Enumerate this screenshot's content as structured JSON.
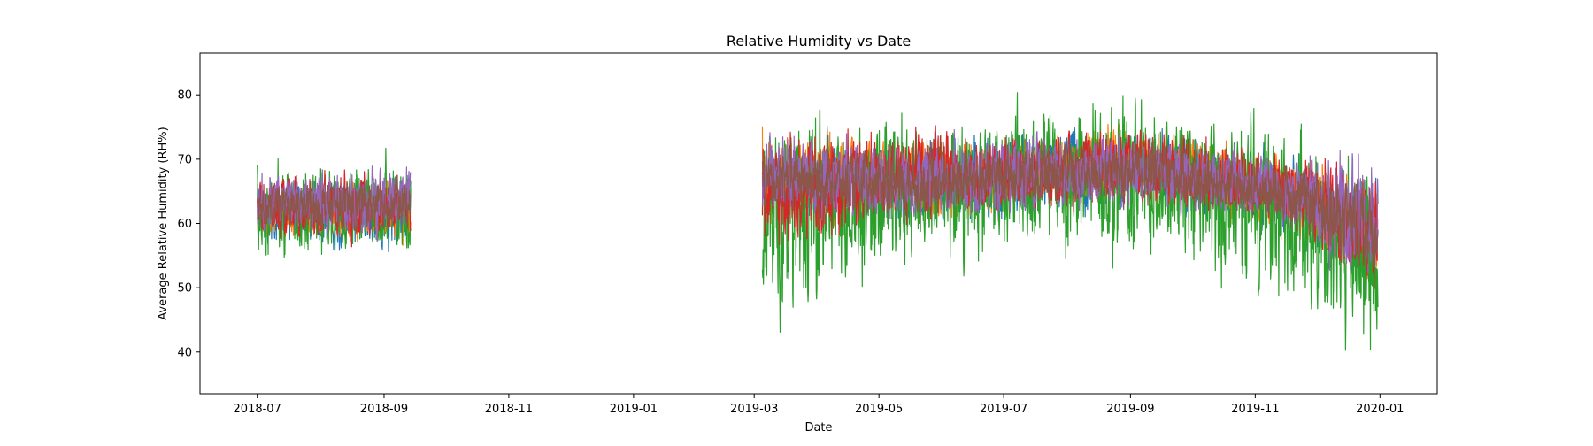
{
  "chart_data": {
    "type": "line",
    "title": "Relative Humidity vs Date",
    "xlabel": "Date",
    "ylabel": "Average Relative Humidity (RH%)",
    "xlim": [
      "2018-06-03",
      "2020-01-29"
    ],
    "ylim": [
      33.5,
      86.5
    ],
    "x_ticks": [
      "2018-07",
      "2018-09",
      "2018-11",
      "2019-01",
      "2019-03",
      "2019-05",
      "2019-07",
      "2019-09",
      "2019-11",
      "2020-01"
    ],
    "y_ticks": [
      40,
      50,
      60,
      70,
      80
    ],
    "grid": false,
    "legend": "none",
    "segments": [
      {
        "start": "2018-07-01",
        "end": "2018-09-14"
      },
      {
        "start": "2019-03-05",
        "end": "2019-12-31"
      }
    ],
    "series": [
      {
        "color": "#1f77b4",
        "range": [
          {
            "x": "2018-07",
            "low": 54,
            "high": 69
          },
          {
            "x": "2018-09",
            "low": 53,
            "high": 70
          },
          {
            "x": "2019-03",
            "low": 58,
            "high": 76
          },
          {
            "x": "2019-05",
            "low": 56,
            "high": 76
          },
          {
            "x": "2019-07",
            "low": 58,
            "high": 78
          },
          {
            "x": "2019-09",
            "low": 59,
            "high": 78
          },
          {
            "x": "2019-11",
            "low": 55,
            "high": 73
          },
          {
            "x": "2019-12",
            "low": 48,
            "high": 72
          }
        ]
      },
      {
        "color": "#ff7f0e",
        "range": [
          {
            "x": "2018-07",
            "low": 55,
            "high": 69
          },
          {
            "x": "2018-09",
            "low": 55,
            "high": 70
          },
          {
            "x": "2019-03",
            "low": 58,
            "high": 77
          },
          {
            "x": "2019-05",
            "low": 57,
            "high": 76
          },
          {
            "x": "2019-07",
            "low": 59,
            "high": 77
          },
          {
            "x": "2019-09",
            "low": 60,
            "high": 78
          },
          {
            "x": "2019-11",
            "low": 56,
            "high": 73
          },
          {
            "x": "2019-12",
            "low": 47,
            "high": 72
          }
        ]
      },
      {
        "color": "#2ca02c",
        "range": [
          {
            "x": "2018-07",
            "low": 51,
            "high": 73
          },
          {
            "x": "2018-09",
            "low": 52,
            "high": 74
          },
          {
            "x": "2019-03",
            "low": 39,
            "high": 84
          },
          {
            "x": "2019-05",
            "low": 49,
            "high": 83
          },
          {
            "x": "2019-07",
            "low": 50,
            "high": 84
          },
          {
            "x": "2019-09",
            "low": 50,
            "high": 83
          },
          {
            "x": "2019-11",
            "low": 42,
            "high": 81
          },
          {
            "x": "2019-12",
            "low": 35,
            "high": 76
          }
        ]
      },
      {
        "color": "#d62728",
        "range": [
          {
            "x": "2018-07",
            "low": 55,
            "high": 70
          },
          {
            "x": "2018-09",
            "low": 55,
            "high": 71
          },
          {
            "x": "2019-03",
            "low": 50,
            "high": 79
          },
          {
            "x": "2019-05",
            "low": 58,
            "high": 78
          },
          {
            "x": "2019-07",
            "low": 59,
            "high": 77
          },
          {
            "x": "2019-09",
            "low": 60,
            "high": 78
          },
          {
            "x": "2019-11",
            "low": 57,
            "high": 74
          },
          {
            "x": "2019-12",
            "low": 47,
            "high": 72
          }
        ]
      },
      {
        "color": "#9467bd",
        "range": [
          {
            "x": "2018-07",
            "low": 56,
            "high": 70
          },
          {
            "x": "2018-09",
            "low": 56,
            "high": 72
          },
          {
            "x": "2019-03",
            "low": 59,
            "high": 77
          },
          {
            "x": "2019-05",
            "low": 57,
            "high": 76
          },
          {
            "x": "2019-07",
            "low": 59,
            "high": 77
          },
          {
            "x": "2019-09",
            "low": 60,
            "high": 77
          },
          {
            "x": "2019-11",
            "low": 57,
            "high": 73
          },
          {
            "x": "2019-12",
            "low": 48,
            "high": 74
          }
        ]
      },
      {
        "color": "#8c564b",
        "range": [
          {
            "x": "2018-07",
            "low": 57,
            "high": 68
          },
          {
            "x": "2018-09",
            "low": 57,
            "high": 69
          },
          {
            "x": "2019-03",
            "low": 60,
            "high": 74
          },
          {
            "x": "2019-05",
            "low": 58,
            "high": 74
          },
          {
            "x": "2019-07",
            "low": 60,
            "high": 75
          },
          {
            "x": "2019-09",
            "low": 61,
            "high": 75
          },
          {
            "x": "2019-11",
            "low": 58,
            "high": 71
          },
          {
            "x": "2019-12",
            "low": 49,
            "high": 71
          }
        ]
      }
    ]
  }
}
